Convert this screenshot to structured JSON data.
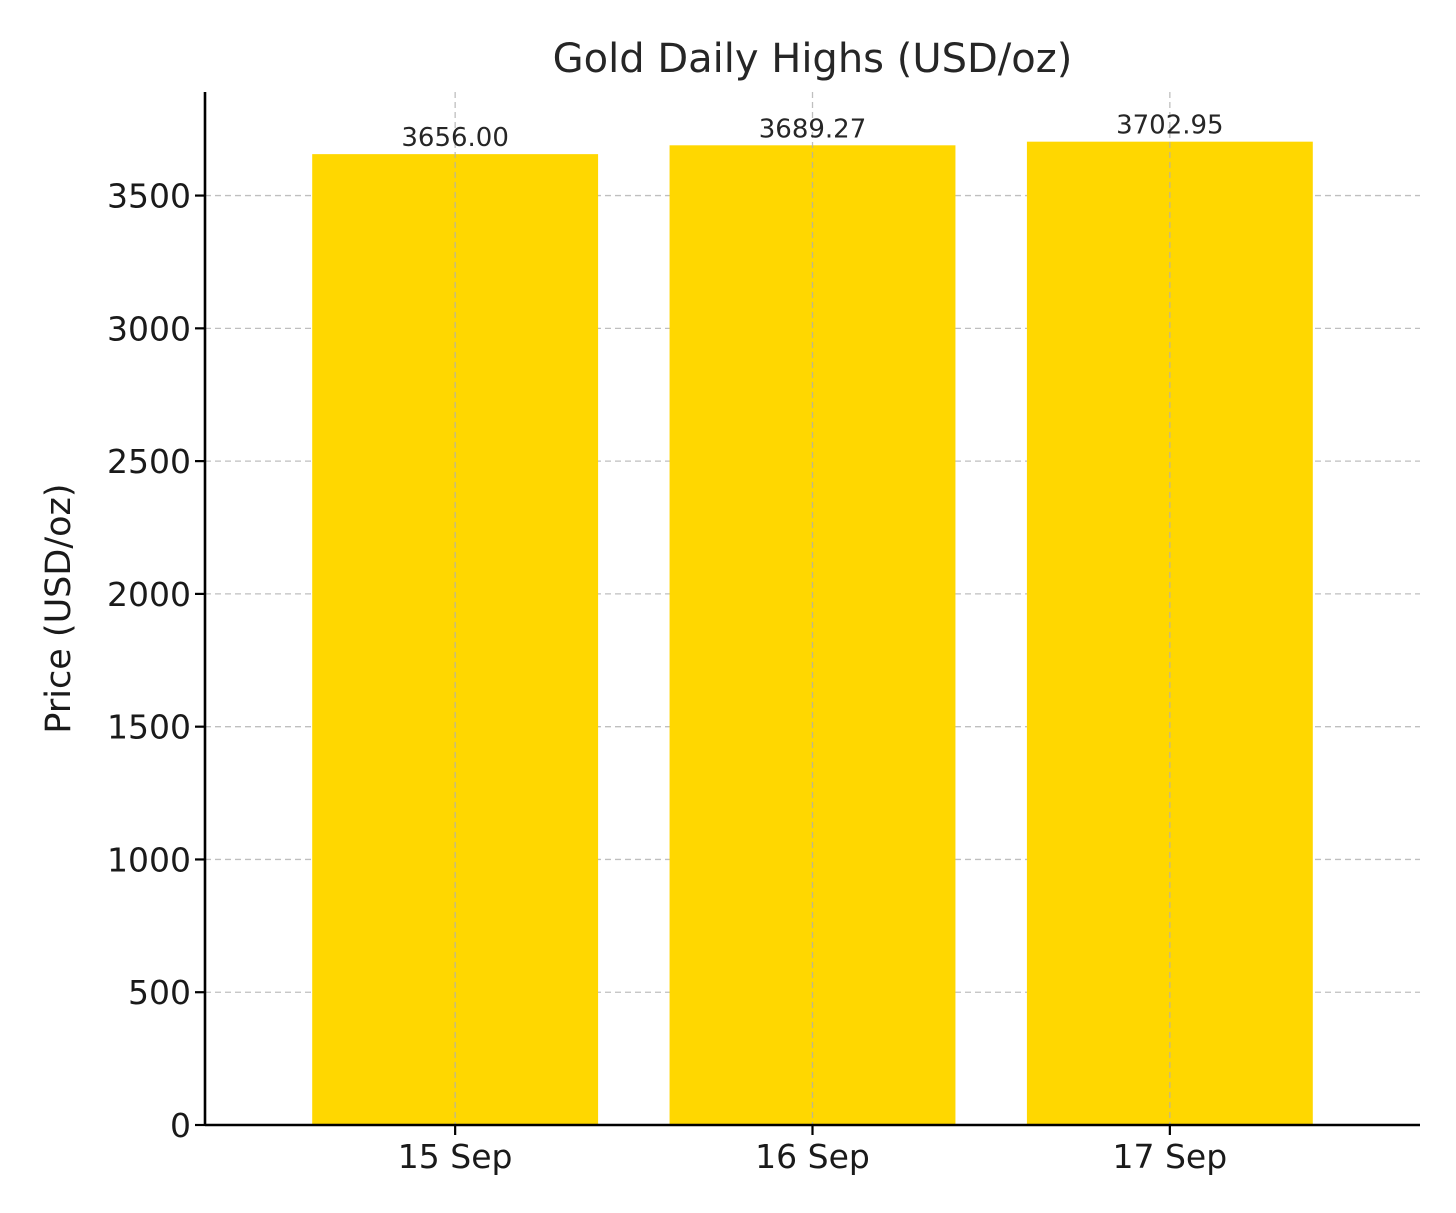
{
  "chart_data": {
    "type": "bar",
    "title": "Gold Daily Highs (USD/oz)",
    "xlabel": "",
    "ylabel": "Price (USD/oz)",
    "categories": [
      "15 Sep",
      "16 Sep",
      "17 Sep"
    ],
    "values": [
      3656.0,
      3689.27,
      3702.95
    ],
    "data_labels": [
      "3656.00",
      "3689.27",
      "3702.95"
    ],
    "y_ticks": [
      0,
      500,
      1000,
      1500,
      2000,
      2500,
      3000,
      3500
    ],
    "ylim": [
      0,
      3890
    ],
    "grid": true,
    "legend": "none",
    "bar_color": "#FFD700"
  }
}
